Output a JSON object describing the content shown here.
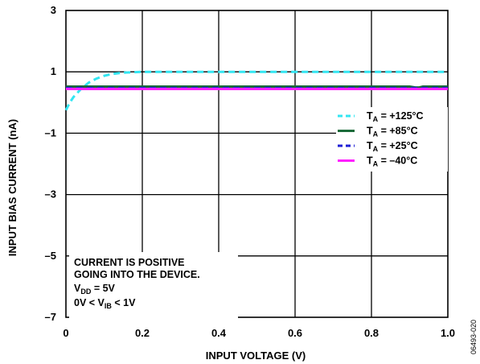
{
  "chart_data": {
    "type": "line",
    "xlabel": "INPUT VOLTAGE (V)",
    "ylabel": "INPUT BIAS CURRENT (nA)",
    "xlim": [
      0,
      1.0
    ],
    "ylim": [
      -7,
      3
    ],
    "x_ticks": [
      0,
      0.2,
      0.4,
      0.6,
      0.8,
      1.0
    ],
    "x_tick_labels": [
      "0",
      "0.2",
      "0.4",
      "0.6",
      "0.8",
      "1.0"
    ],
    "y_ticks": [
      -7,
      -5,
      -3,
      -1,
      1,
      3
    ],
    "y_tick_labels": [
      "–7",
      "–5",
      "–3",
      "–1",
      "1",
      "3"
    ],
    "grid": true,
    "legend_placement": "right",
    "series": [
      {
        "name_main": "T",
        "name_sub": "A",
        "name_rest": " = +125°C",
        "color": "#33e6f2",
        "dash": "dashed",
        "x": [
          0,
          0.01,
          0.02,
          0.04,
          0.06,
          0.08,
          0.1,
          0.12,
          0.14,
          0.16,
          0.18,
          0.2,
          0.4,
          0.6,
          0.8,
          1.0
        ],
        "y": [
          -0.25,
          0.0,
          0.18,
          0.45,
          0.65,
          0.78,
          0.87,
          0.93,
          0.96,
          0.98,
          0.99,
          1.0,
          1.0,
          1.0,
          1.0,
          1.0
        ]
      },
      {
        "name_main": "T",
        "name_sub": "A",
        "name_rest": " = +85°C",
        "color": "#1b6b3a",
        "dash": "solid",
        "x": [
          0,
          0.2,
          0.4,
          0.6,
          0.8,
          0.9,
          0.915,
          0.925,
          0.935,
          1.0
        ],
        "y": [
          0.52,
          0.52,
          0.52,
          0.52,
          0.52,
          0.52,
          0.49,
          0.49,
          0.52,
          0.52
        ]
      },
      {
        "name_main": "T",
        "name_sub": "A",
        "name_rest": " = +25°C",
        "color": "#1f1fd6",
        "dash": "dashed",
        "x": [
          0,
          0.2,
          0.4,
          0.6,
          0.8,
          1.0
        ],
        "y": [
          0.47,
          0.47,
          0.47,
          0.47,
          0.47,
          0.47
        ]
      },
      {
        "name_main": "T",
        "name_sub": "A",
        "name_rest": " = –40°C",
        "color": "#ff1fff",
        "dash": "solid",
        "x": [
          0,
          0.2,
          0.4,
          0.6,
          0.8,
          1.0
        ],
        "y": [
          0.44,
          0.44,
          0.44,
          0.44,
          0.44,
          0.44
        ]
      }
    ],
    "annotation": {
      "line1": "CURRENT IS POSITIVE",
      "line2": "GOING INTO THE DEVICE.",
      "vdd_main": "V",
      "vdd_sub": "DD",
      "vdd_rest": " = 5V",
      "vib_pre": "0V < V",
      "vib_sub": "IB",
      "vib_rest": " < 1V"
    },
    "figure_id": "06493-020"
  }
}
